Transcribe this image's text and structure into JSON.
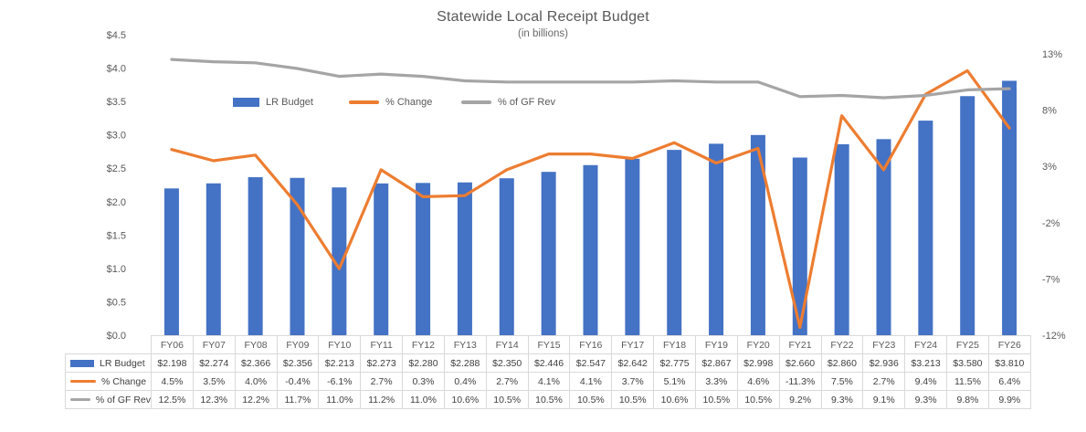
{
  "chart": {
    "title": "Statewide Local Receipt Budget",
    "subtitle": "(in billions)"
  },
  "chart_data": {
    "type": "combo-bar-line",
    "title": "Statewide Local Receipt Budget",
    "subtitle": "(in billions)",
    "grid": false,
    "data_table_shown": true,
    "categories": [
      "FY06",
      "FY07",
      "FY08",
      "FY09",
      "FY10",
      "FY11",
      "FY12",
      "FY13",
      "FY14",
      "FY15",
      "FY16",
      "FY17",
      "FY18",
      "FY19",
      "FY20",
      "FY21",
      "FY22",
      "FY23",
      "FY24",
      "FY25",
      "FY26"
    ],
    "series": [
      {
        "name": "LR Budget",
        "chart_type": "bar",
        "axis": "left",
        "color": "#4472C4",
        "values": [
          2.198,
          2.274,
          2.366,
          2.356,
          2.213,
          2.273,
          2.28,
          2.288,
          2.35,
          2.446,
          2.547,
          2.642,
          2.775,
          2.867,
          2.998,
          2.66,
          2.86,
          2.936,
          3.213,
          3.58,
          3.81
        ],
        "display": [
          "$2.198",
          "$2.274",
          "$2.366",
          "$2.356",
          "$2.213",
          "$2.273",
          "$2.280",
          "$2.288",
          "$2.350",
          "$2.446",
          "$2.547",
          "$2.642",
          "$2.775",
          "$2.867",
          "$2.998",
          "$2.660",
          "$2.860",
          "$2.936",
          "$3.213",
          "$3.580",
          "$3.810"
        ]
      },
      {
        "name": "% Change",
        "chart_type": "line",
        "axis": "right",
        "color": "#ED7D31",
        "values": [
          4.5,
          3.5,
          4.0,
          -0.4,
          -6.1,
          2.7,
          0.3,
          0.4,
          2.7,
          4.1,
          4.1,
          3.7,
          5.1,
          3.3,
          4.6,
          -11.3,
          7.5,
          2.7,
          9.4,
          11.5,
          6.4
        ],
        "display": [
          "4.5%",
          "3.5%",
          "4.0%",
          "-0.4%",
          "-6.1%",
          "2.7%",
          "0.3%",
          "0.4%",
          "2.7%",
          "4.1%",
          "4.1%",
          "3.7%",
          "5.1%",
          "3.3%",
          "4.6%",
          "-11.3%",
          "7.5%",
          "2.7%",
          "9.4%",
          "11.5%",
          "6.4%"
        ]
      },
      {
        "name": "% of GF Rev",
        "chart_type": "line",
        "axis": "right",
        "color": "#A5A5A5",
        "values": [
          12.5,
          12.3,
          12.2,
          11.7,
          11.0,
          11.2,
          11.0,
          10.6,
          10.5,
          10.5,
          10.5,
          10.5,
          10.6,
          10.5,
          10.5,
          9.2,
          9.3,
          9.1,
          9.3,
          9.8,
          9.9
        ],
        "display": [
          "12.5%",
          "12.3%",
          "12.2%",
          "11.7%",
          "11.0%",
          "11.2%",
          "11.0%",
          "10.6%",
          "10.5%",
          "10.5%",
          "10.5%",
          "10.5%",
          "10.6%",
          "10.5%",
          "10.5%",
          "9.2%",
          "9.3%",
          "9.1%",
          "9.3%",
          "9.8%",
          "9.9%"
        ]
      }
    ],
    "left_axis": {
      "min": 0,
      "max": 4.5,
      "major_unit": 0.5,
      "ticks": [
        "$4.5",
        "$4.0",
        "$3.5",
        "$3.0",
        "$2.5",
        "$2.0",
        "$1.5",
        "$1.0",
        "$0.5",
        "$0.0"
      ],
      "tick_values": [
        4.5,
        4.0,
        3.5,
        3.0,
        2.5,
        2.0,
        1.5,
        1.0,
        0.5,
        0.0
      ]
    },
    "right_axis": {
      "min": -12,
      "max": 13,
      "major_unit": 5,
      "ticks": [
        "13%",
        "8%",
        "3%",
        "-2%",
        "-7%",
        "-12%"
      ],
      "tick_values": [
        13,
        8,
        3,
        -2,
        -7,
        -12
      ]
    },
    "legend": {
      "position": "top-inside",
      "entries": [
        "LR Budget",
        "% Change",
        "% of GF Rev"
      ]
    }
  },
  "colors": {
    "bar": "#4472C4",
    "pct_change_line": "#ED7D31",
    "gf_rev_line": "#A5A5A5",
    "axis_text": "#595959",
    "table_text": "#404040",
    "table_border": "#D9D9D9"
  }
}
